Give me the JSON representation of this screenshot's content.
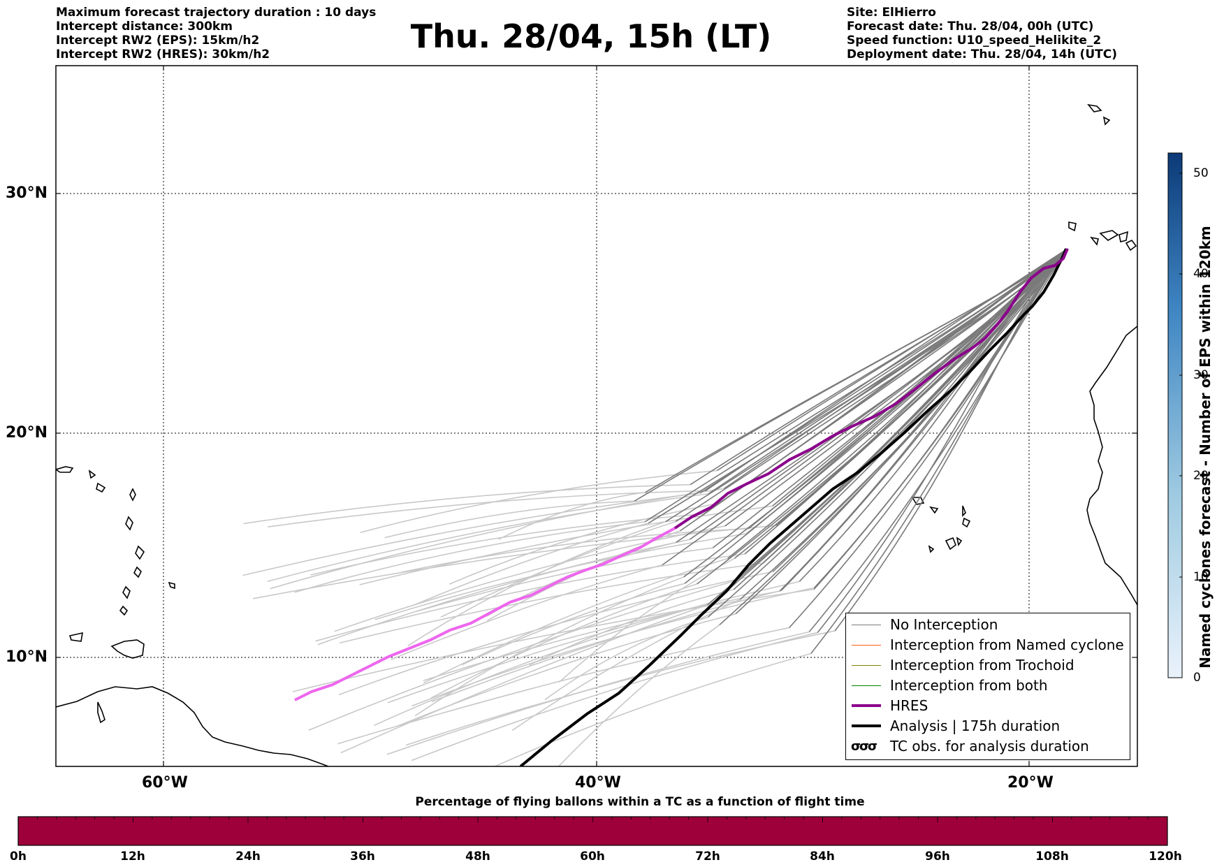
{
  "header_left": [
    "Maximum forecast trajectory duration : 10 days",
    "Intercept distance: 300km",
    "Intercept RW2 (EPS):  15km/h2",
    "Intercept RW2 (HRES): 30km/h2"
  ],
  "header_right": [
    "Site: ElHierro",
    "Forecast date: Thu. 28/04, 00h (UTC)",
    "Speed function: U10_speed_Helikite_2",
    "Deployment date: Thu. 28/04, 14h (UTC)"
  ],
  "title": "Thu. 28/04, 15h (LT)",
  "map": {
    "lon_labels": [
      "60°W",
      "40°W",
      "20°W"
    ],
    "lat_labels": [
      "30°N",
      "20°N",
      "10°N"
    ],
    "grid": "dotted",
    "colors": {
      "no_interception": "#7a7a7a",
      "no_interception_late": "#c8c8c8",
      "hres": "#8b008b",
      "hres_late": "#ee66ee",
      "analysis": "#000000",
      "named_cyclone": "#ff5a14",
      "trochoid": "#808000",
      "both": "#008000"
    }
  },
  "legend": {
    "items": [
      {
        "label": "No Interception",
        "color": "#7a7a7a"
      },
      {
        "label": "Interception from Named cyclone",
        "color": "#ff5a14"
      },
      {
        "label": "Interception from Trochoid",
        "color": "#808000"
      },
      {
        "label": "Interception from both",
        "color": "#008000"
      },
      {
        "label": "HRES",
        "color": "#8b008b"
      },
      {
        "label": "Analysis | 175h duration",
        "color": "#000000"
      },
      {
        "label": "TC obs. for analysis duration",
        "symbol": "σσσ"
      }
    ]
  },
  "colorbar": {
    "label": "Named cyclones forecast - Number of EPS within 120km",
    "ticks": [
      "0",
      "10",
      "20",
      "30",
      "40",
      "50"
    ]
  },
  "bottom_bar": {
    "title": "Percentage of flying ballons within a TC as a function of flight time",
    "color": "#9e003a",
    "ticks": [
      "0h",
      "12h",
      "24h",
      "36h",
      "48h",
      "60h",
      "72h",
      "84h",
      "96h",
      "108h",
      "120h"
    ]
  }
}
